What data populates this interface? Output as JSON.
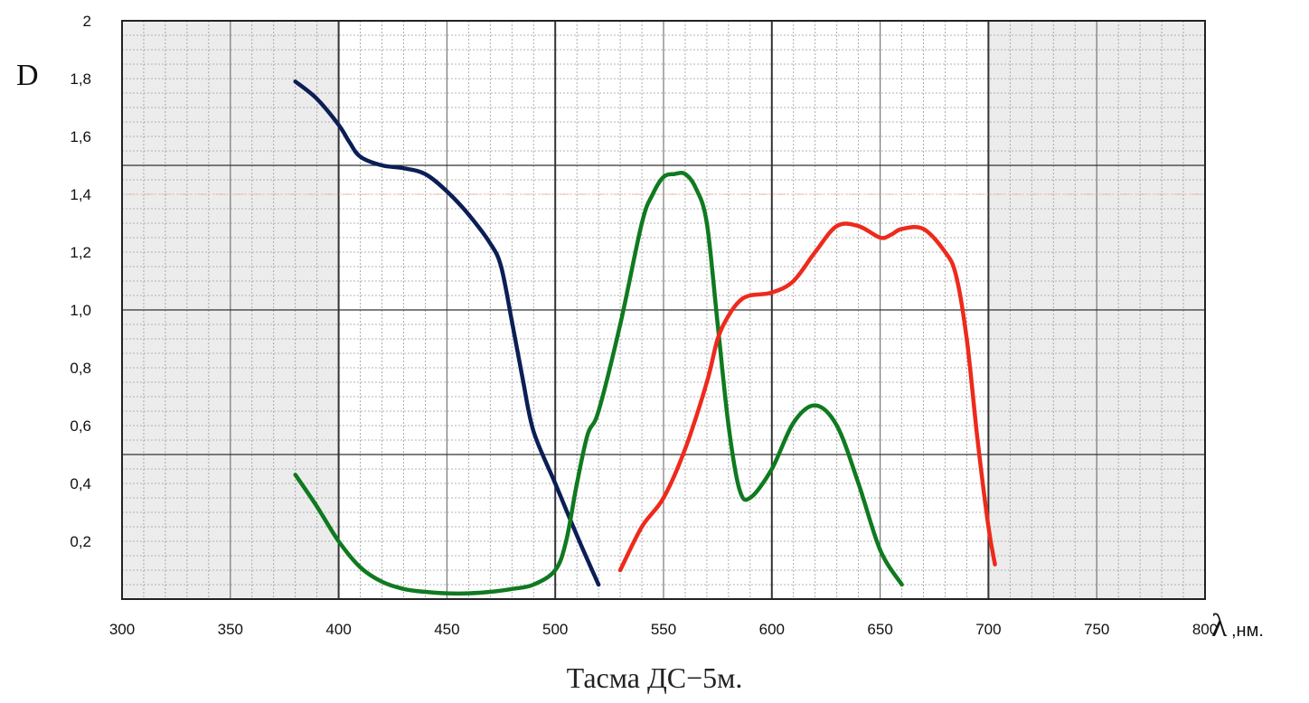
{
  "caption": "Тасма ДС−5м.",
  "chart_data": {
    "type": "line",
    "ylabel": "D",
    "xlabel_symbol": "λ",
    "xlabel_unit": ",нм.",
    "xlim": [
      300,
      800
    ],
    "ylim": [
      0,
      2
    ],
    "x_ticks": [
      300,
      350,
      400,
      450,
      500,
      550,
      600,
      650,
      700,
      750,
      800
    ],
    "x_tick_labels": [
      "300",
      "350",
      "400",
      "450",
      "500",
      "550",
      "600",
      "650",
      "700",
      "750",
      "800"
    ],
    "y_ticks": [
      0.2,
      0.4,
      0.6,
      0.8,
      1.0,
      1.2,
      1.4,
      1.6,
      1.8,
      2
    ],
    "y_tick_labels": [
      "0,2",
      "0,4",
      "0,6",
      "0,8",
      "1,0",
      "1,2",
      "1,4",
      "1,6",
      "1,8",
      "2"
    ],
    "shaded_ranges": [
      [
        300,
        400
      ],
      [
        700,
        800
      ]
    ],
    "grid": true,
    "series": [
      {
        "color": "#0b1e55",
        "x": [
          380,
          390,
          400,
          405,
          410,
          420,
          430,
          440,
          450,
          460,
          470,
          475,
          480,
          485,
          490,
          500,
          510,
          520
        ],
        "y": [
          1.79,
          1.73,
          1.64,
          1.58,
          1.53,
          1.5,
          1.49,
          1.47,
          1.41,
          1.33,
          1.23,
          1.15,
          0.96,
          0.76,
          0.58,
          0.4,
          0.22,
          0.05
        ]
      },
      {
        "color": "#0f7a1f",
        "x": [
          380,
          390,
          400,
          410,
          420,
          430,
          440,
          450,
          460,
          470,
          480,
          490,
          500,
          505,
          510,
          515,
          520,
          530,
          540,
          545,
          550,
          555,
          560,
          565,
          570,
          575,
          580,
          585,
          590,
          600,
          610,
          620,
          630,
          640,
          650,
          660
        ],
        "y": [
          0.43,
          0.32,
          0.2,
          0.11,
          0.06,
          0.035,
          0.025,
          0.02,
          0.02,
          0.025,
          0.035,
          0.05,
          0.1,
          0.2,
          0.4,
          0.57,
          0.65,
          0.95,
          1.3,
          1.4,
          1.46,
          1.47,
          1.47,
          1.42,
          1.3,
          0.95,
          0.6,
          0.38,
          0.35,
          0.45,
          0.61,
          0.67,
          0.6,
          0.4,
          0.17,
          0.05
        ]
      },
      {
        "color": "#ee2a1c",
        "x": [
          530,
          540,
          550,
          560,
          570,
          575,
          580,
          585,
          590,
          600,
          610,
          620,
          630,
          640,
          650,
          655,
          660,
          670,
          680,
          685,
          690,
          695,
          700,
          703
        ],
        "y": [
          0.1,
          0.25,
          0.35,
          0.52,
          0.75,
          0.9,
          0.98,
          1.03,
          1.05,
          1.06,
          1.1,
          1.2,
          1.29,
          1.29,
          1.25,
          1.26,
          1.28,
          1.28,
          1.2,
          1.12,
          0.9,
          0.55,
          0.25,
          0.12
        ]
      }
    ]
  }
}
